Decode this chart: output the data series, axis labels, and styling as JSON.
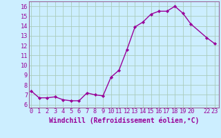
{
  "x": [
    0,
    1,
    2,
    3,
    4,
    5,
    6,
    7,
    8,
    9,
    10,
    11,
    12,
    13,
    14,
    15,
    16,
    17,
    18,
    19,
    20,
    22,
    23
  ],
  "y": [
    7.4,
    6.7,
    6.7,
    6.8,
    6.5,
    6.4,
    6.4,
    7.2,
    7.0,
    6.9,
    8.8,
    9.5,
    11.6,
    13.9,
    14.4,
    15.2,
    15.5,
    15.5,
    16.0,
    15.3,
    14.2,
    12.8,
    12.2
  ],
  "xticks": [
    0,
    1,
    2,
    3,
    4,
    5,
    6,
    7,
    8,
    9,
    10,
    11,
    12,
    13,
    14,
    15,
    16,
    17,
    18,
    19,
    20,
    22,
    23
  ],
  "xtick_labels": [
    "0",
    "1",
    "2",
    "3",
    "4",
    "5",
    "6",
    "7",
    "8",
    "9",
    "10",
    "11",
    "12",
    "13",
    "14",
    "15",
    "16",
    "17",
    "18",
    "19",
    "20",
    "22",
    "23"
  ],
  "yticks": [
    6,
    7,
    8,
    9,
    10,
    11,
    12,
    13,
    14,
    15,
    16
  ],
  "ylim": [
    5.7,
    16.5
  ],
  "xlim": [
    -0.3,
    23.5
  ],
  "line_color": "#990099",
  "marker": "D",
  "markersize": 2.2,
  "linewidth": 1.0,
  "bg_color": "#cceeff",
  "grid_color": "#aaccbb",
  "xlabel": "Windchill (Refroidissement éolien,°C)",
  "xlabel_fontsize": 7.0,
  "tick_fontsize": 6.2,
  "spine_color": "#996699"
}
